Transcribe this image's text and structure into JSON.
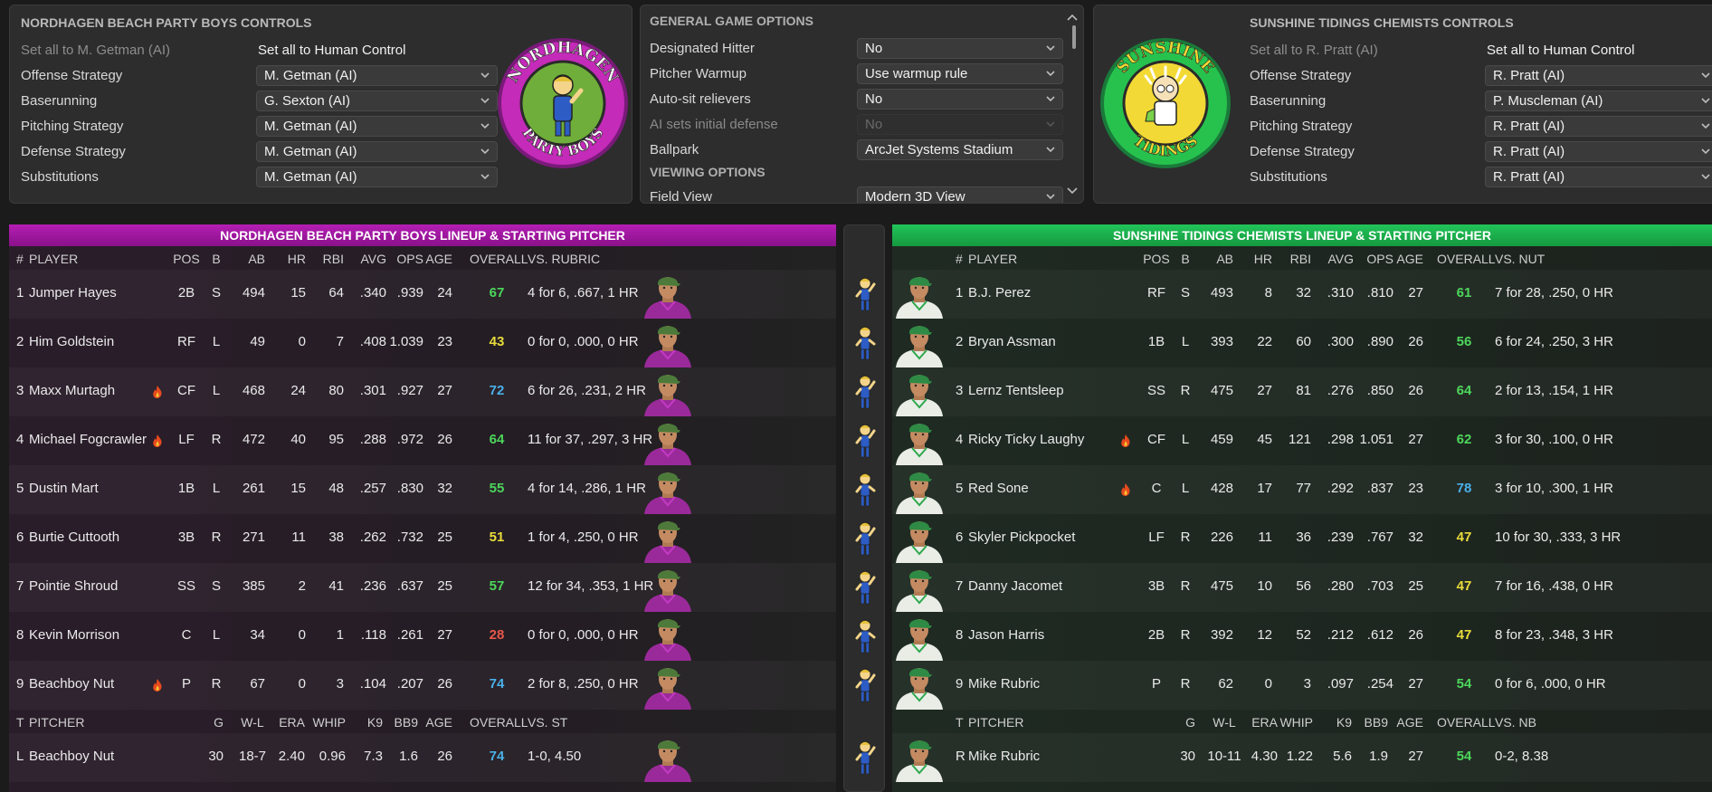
{
  "away_controls": {
    "title": "NORDHAGEN BEACH PARTY BOYS CONTROLS",
    "set_all_ai": "Set all to M. Getman (AI)",
    "set_all_human": "Set all to Human Control",
    "rows": [
      {
        "label": "Offense Strategy",
        "value": "M. Getman (AI)"
      },
      {
        "label": "Baserunning",
        "value": "G. Sexton (AI)"
      },
      {
        "label": "Pitching Strategy",
        "value": "M. Getman (AI)"
      },
      {
        "label": "Defense Strategy",
        "value": "M. Getman (AI)"
      },
      {
        "label": "Substitutions",
        "value": "M. Getman (AI)"
      }
    ],
    "logo_text_top": "NORDHAGEN",
    "logo_text_bottom": "PARTY BOYS"
  },
  "options": {
    "general_title": "GENERAL GAME OPTIONS",
    "rows": [
      {
        "label": "Designated Hitter",
        "value": "No",
        "disabled": false
      },
      {
        "label": "Pitcher Warmup",
        "value": "Use warmup rule",
        "disabled": false
      },
      {
        "label": "Auto-sit relievers",
        "value": "No",
        "disabled": false
      },
      {
        "label": "AI sets initial defense",
        "value": "No",
        "disabled": true
      },
      {
        "label": "Ballpark",
        "value": "ArcJet Systems Stadium",
        "disabled": false
      }
    ],
    "viewing_title": "VIEWING OPTIONS",
    "field_view_label": "Field View",
    "field_view_value": "Modern 3D View"
  },
  "home_controls": {
    "title": "SUNSHINE TIDINGS CHEMISTS CONTROLS",
    "set_all_ai": "Set all to R. Pratt (AI)",
    "set_all_human": "Set all to Human Control",
    "rows": [
      {
        "label": "Offense Strategy",
        "value": "R. Pratt (AI)"
      },
      {
        "label": "Baserunning",
        "value": "P. Muscleman (AI)"
      },
      {
        "label": "Pitching Strategy",
        "value": "R. Pratt (AI)"
      },
      {
        "label": "Defense Strategy",
        "value": "R. Pratt (AI)"
      },
      {
        "label": "Substitutions",
        "value": "R. Pratt (AI)"
      }
    ],
    "logo_text_top": "SUNSHINE",
    "logo_text_bottom": "TIDINGS"
  },
  "colors": {
    "rating_green": "#4cd65a",
    "rating_yellow": "#e8dc3a",
    "rating_blue": "#4ab0e8",
    "rating_red": "#e8584a",
    "away_accent": "#b41eb4",
    "home_accent": "#22c45a"
  },
  "away_lineup": {
    "title": "NORDHAGEN BEACH PARTY BOYS LINEUP & STARTING PITCHER",
    "headers": [
      "#",
      "PLAYER",
      "POS",
      "B",
      "AB",
      "HR",
      "RBI",
      "AVG",
      "OPS",
      "AGE",
      "OVERALL",
      "VS. RUBRIC"
    ],
    "players": [
      {
        "num": "1",
        "name": "Jumper Hayes",
        "hot": false,
        "pos": "2B",
        "b": "S",
        "ab": "494",
        "hr": "15",
        "rbi": "64",
        "avg": ".340",
        "ops": ".939",
        "age": "24",
        "overall": "67",
        "rating": "green",
        "vs": "4 for 6, .667, 1 HR"
      },
      {
        "num": "2",
        "name": "Him Goldstein",
        "hot": false,
        "pos": "RF",
        "b": "L",
        "ab": "49",
        "hr": "0",
        "rbi": "7",
        "avg": ".408",
        "ops": "1.039",
        "age": "23",
        "overall": "43",
        "rating": "yellow",
        "vs": "0 for 0, .000, 0 HR"
      },
      {
        "num": "3",
        "name": "Maxx Murtagh",
        "hot": true,
        "pos": "CF",
        "b": "L",
        "ab": "468",
        "hr": "24",
        "rbi": "80",
        "avg": ".301",
        "ops": ".927",
        "age": "27",
        "overall": "72",
        "rating": "blue",
        "vs": "6 for 26, .231, 2 HR"
      },
      {
        "num": "4",
        "name": "Michael Fogcrawler",
        "hot": true,
        "pos": "LF",
        "b": "R",
        "ab": "472",
        "hr": "40",
        "rbi": "95",
        "avg": ".288",
        "ops": ".972",
        "age": "26",
        "overall": "64",
        "rating": "green",
        "vs": "11 for 37, .297, 3 HR"
      },
      {
        "num": "5",
        "name": "Dustin Mart",
        "hot": false,
        "pos": "1B",
        "b": "L",
        "ab": "261",
        "hr": "15",
        "rbi": "48",
        "avg": ".257",
        "ops": ".830",
        "age": "32",
        "overall": "55",
        "rating": "green",
        "vs": "4 for 14, .286, 1 HR"
      },
      {
        "num": "6",
        "name": "Burtie Cuttooth",
        "hot": false,
        "pos": "3B",
        "b": "R",
        "ab": "271",
        "hr": "11",
        "rbi": "38",
        "avg": ".262",
        "ops": ".732",
        "age": "25",
        "overall": "51",
        "rating": "yellow",
        "vs": "1 for 4, .250, 0 HR"
      },
      {
        "num": "7",
        "name": "Pointie Shroud",
        "hot": false,
        "pos": "SS",
        "b": "S",
        "ab": "385",
        "hr": "2",
        "rbi": "41",
        "avg": ".236",
        "ops": ".637",
        "age": "25",
        "overall": "57",
        "rating": "green",
        "vs": "12 for 34, .353, 1 HR"
      },
      {
        "num": "8",
        "name": "Kevin Morrison",
        "hot": false,
        "pos": "C",
        "b": "L",
        "ab": "34",
        "hr": "0",
        "rbi": "1",
        "avg": ".118",
        "ops": ".261",
        "age": "27",
        "overall": "28",
        "rating": "red",
        "vs": "0 for 0, .000, 0 HR"
      },
      {
        "num": "9",
        "name": "Beachboy Nut",
        "hot": true,
        "pos": "P",
        "b": "R",
        "ab": "67",
        "hr": "0",
        "rbi": "3",
        "avg": ".104",
        "ops": ".207",
        "age": "26",
        "overall": "74",
        "rating": "blue",
        "vs": "2 for 8, .250, 0 HR"
      }
    ],
    "pitcher_headers": [
      "T",
      "PITCHER",
      "G",
      "W-L",
      "ERA",
      "WHIP",
      "K9",
      "BB9",
      "AGE",
      "OVERALL",
      "VS. ST"
    ],
    "pitcher": {
      "t": "L",
      "name": "Beachboy Nut",
      "g": "30",
      "wl": "18-7",
      "era": "2.40",
      "whip": "0.96",
      "k9": "7.3",
      "bb9": "1.6",
      "age": "26",
      "overall": "74",
      "rating": "blue",
      "vs": "1-0, 4.50"
    }
  },
  "home_lineup": {
    "title": "SUNSHINE TIDINGS CHEMISTS LINEUP & STARTING PITCHER",
    "headers": [
      "#",
      "PLAYER",
      "POS",
      "B",
      "AB",
      "HR",
      "RBI",
      "AVG",
      "OPS",
      "AGE",
      "OVERALL",
      "VS. NUT"
    ],
    "players": [
      {
        "num": "1",
        "name": "B.J. Perez",
        "hot": false,
        "pos": "RF",
        "b": "S",
        "ab": "493",
        "hr": "8",
        "rbi": "32",
        "avg": ".310",
        "ops": ".810",
        "age": "27",
        "overall": "61",
        "rating": "green",
        "vs": "7 for 28, .250, 0 HR"
      },
      {
        "num": "2",
        "name": "Bryan Assman",
        "hot": false,
        "pos": "1B",
        "b": "L",
        "ab": "393",
        "hr": "22",
        "rbi": "60",
        "avg": ".300",
        "ops": ".890",
        "age": "26",
        "overall": "56",
        "rating": "green",
        "vs": "6 for 24, .250, 3 HR"
      },
      {
        "num": "3",
        "name": "Lernz Tentsleep",
        "hot": false,
        "pos": "SS",
        "b": "R",
        "ab": "475",
        "hr": "27",
        "rbi": "81",
        "avg": ".276",
        "ops": ".850",
        "age": "26",
        "overall": "64",
        "rating": "green",
        "vs": "2 for 13, .154, 1 HR"
      },
      {
        "num": "4",
        "name": "Ricky Ticky Laughy",
        "hot": true,
        "pos": "CF",
        "b": "L",
        "ab": "459",
        "hr": "45",
        "rbi": "121",
        "avg": ".298",
        "ops": "1.051",
        "age": "27",
        "overall": "62",
        "rating": "green",
        "vs": "3 for 30, .100, 0 HR"
      },
      {
        "num": "5",
        "name": "Red Sone",
        "hot": true,
        "pos": "C",
        "b": "L",
        "ab": "428",
        "hr": "17",
        "rbi": "77",
        "avg": ".292",
        "ops": ".837",
        "age": "23",
        "overall": "78",
        "rating": "blue",
        "vs": "3 for 10, .300, 1 HR"
      },
      {
        "num": "6",
        "name": "Skyler Pickpocket",
        "hot": false,
        "pos": "LF",
        "b": "R",
        "ab": "226",
        "hr": "11",
        "rbi": "36",
        "avg": ".239",
        "ops": ".767",
        "age": "32",
        "overall": "47",
        "rating": "yellow",
        "vs": "10 for 30, .333, 3 HR"
      },
      {
        "num": "7",
        "name": "Danny Jacomet",
        "hot": false,
        "pos": "3B",
        "b": "R",
        "ab": "475",
        "hr": "10",
        "rbi": "56",
        "avg": ".280",
        "ops": ".703",
        "age": "25",
        "overall": "47",
        "rating": "yellow",
        "vs": "7 for 16, .438, 0 HR"
      },
      {
        "num": "8",
        "name": "Jason Harris",
        "hot": false,
        "pos": "2B",
        "b": "R",
        "ab": "392",
        "hr": "12",
        "rbi": "52",
        "avg": ".212",
        "ops": ".612",
        "age": "26",
        "overall": "47",
        "rating": "yellow",
        "vs": "8 for 23, .348, 3 HR"
      },
      {
        "num": "9",
        "name": "Mike Rubric",
        "hot": false,
        "pos": "P",
        "b": "R",
        "ab": "62",
        "hr": "0",
        "rbi": "3",
        "avg": ".097",
        "ops": ".254",
        "age": "27",
        "overall": "54",
        "rating": "green",
        "vs": "0 for 6, .000, 0 HR"
      }
    ],
    "pitcher_headers": [
      "T",
      "PITCHER",
      "G",
      "W-L",
      "ERA",
      "WHIP",
      "K9",
      "BB9",
      "AGE",
      "OVERALL",
      "VS. NB"
    ],
    "pitcher": {
      "t": "R",
      "name": "Mike Rubric",
      "g": "30",
      "wl": "10-11",
      "era": "4.30",
      "whip": "1.22",
      "k9": "5.6",
      "bb9": "1.9",
      "age": "27",
      "overall": "54",
      "rating": "green",
      "vs": "0-2, 8.38"
    }
  }
}
